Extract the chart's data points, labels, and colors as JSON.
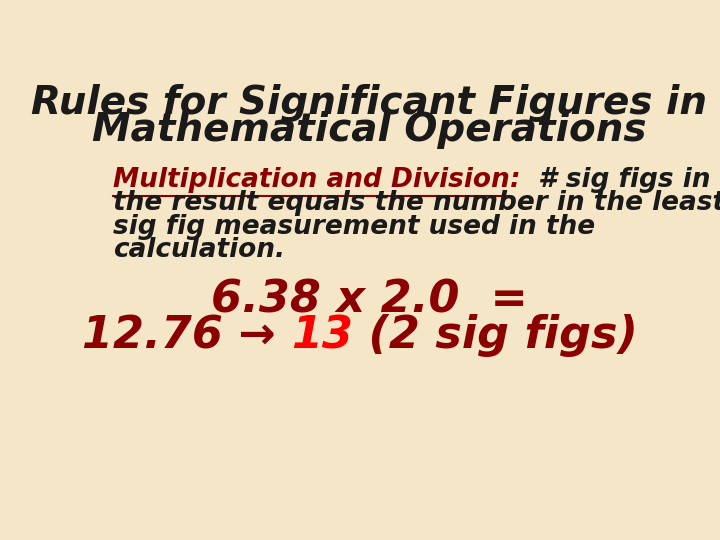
{
  "bg_color": "#f5e6c8",
  "title_line1": "Rules for Significant Figures in",
  "title_line2": "Mathematical Operations",
  "title_color": "#1a1a1a",
  "title_fontsize": 28,
  "body_text_color": "#1a1a1a",
  "body_fontsize": 19,
  "underline_color": "#8b0000",
  "highlight_label": "Multiplication and Division",
  "example_line1": "6.38 x 2.0  =",
  "example_line2_part1": "12.76 → ",
  "example_line2_highlight": "13",
  "example_line2_part2": " (2 sig figs)",
  "example_color": "#8b0000",
  "example_highlight_color": "#ff0000",
  "example_fontsize": 32
}
